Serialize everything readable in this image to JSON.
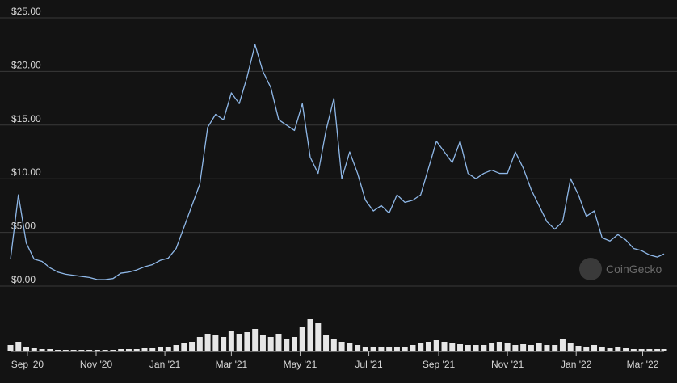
{
  "chart_data": {
    "type": "line",
    "watermark": "CoinGecko",
    "xlim": [
      "2020-08-17",
      "2022-03-20"
    ],
    "xticks": [
      {
        "value": "2020-09-01",
        "label": "Sep '20"
      },
      {
        "value": "2020-11-01",
        "label": "Nov '20"
      },
      {
        "value": "2021-01-01",
        "label": "Jan '21"
      },
      {
        "value": "2021-03-01",
        "label": "Mar '21"
      },
      {
        "value": "2021-05-01",
        "label": "May '21"
      },
      {
        "value": "2021-07-01",
        "label": "Jul '21"
      },
      {
        "value": "2021-09-01",
        "label": "Sep '21"
      },
      {
        "value": "2021-11-01",
        "label": "Nov '21"
      },
      {
        "value": "2022-01-01",
        "label": "Jan '22"
      },
      {
        "value": "2022-03-01",
        "label": "Mar '22"
      }
    ],
    "ylim": [
      0,
      25
    ],
    "yticks": [
      {
        "value": 0,
        "label": "$0.00"
      },
      {
        "value": 5,
        "label": "$5.00"
      },
      {
        "value": 10,
        "label": "$10.00"
      },
      {
        "value": 15,
        "label": "$15.00"
      },
      {
        "value": 20,
        "label": "$20.00"
      },
      {
        "value": 25,
        "label": "$25.00"
      }
    ],
    "y2lim": [
      0,
      50
    ],
    "grid": true,
    "x": [
      "2020-08-17",
      "2020-08-24",
      "2020-08-31",
      "2020-09-07",
      "2020-09-14",
      "2020-09-21",
      "2020-09-28",
      "2020-10-05",
      "2020-10-12",
      "2020-10-19",
      "2020-10-26",
      "2020-11-02",
      "2020-11-09",
      "2020-11-16",
      "2020-11-23",
      "2020-11-30",
      "2020-12-07",
      "2020-12-14",
      "2020-12-21",
      "2020-12-28",
      "2021-01-04",
      "2021-01-11",
      "2021-01-18",
      "2021-01-25",
      "2021-02-01",
      "2021-02-08",
      "2021-02-15",
      "2021-02-22",
      "2021-03-01",
      "2021-03-08",
      "2021-03-15",
      "2021-03-22",
      "2021-03-29",
      "2021-04-05",
      "2021-04-12",
      "2021-04-19",
      "2021-04-26",
      "2021-05-03",
      "2021-05-10",
      "2021-05-17",
      "2021-05-24",
      "2021-05-31",
      "2021-06-07",
      "2021-06-14",
      "2021-06-21",
      "2021-06-28",
      "2021-07-05",
      "2021-07-12",
      "2021-07-19",
      "2021-07-26",
      "2021-08-02",
      "2021-08-09",
      "2021-08-16",
      "2021-08-23",
      "2021-08-30",
      "2021-09-06",
      "2021-09-13",
      "2021-09-20",
      "2021-09-27",
      "2021-10-04",
      "2021-10-11",
      "2021-10-18",
      "2021-10-25",
      "2021-11-01",
      "2021-11-08",
      "2021-11-15",
      "2021-11-22",
      "2021-11-29",
      "2021-12-06",
      "2021-12-13",
      "2021-12-20",
      "2021-12-27",
      "2022-01-03",
      "2022-01-10",
      "2022-01-17",
      "2022-01-24",
      "2022-01-31",
      "2022-02-07",
      "2022-02-14",
      "2022-02-21",
      "2022-02-28",
      "2022-03-07",
      "2022-03-14",
      "2022-03-20"
    ],
    "series": [
      {
        "name": "Price",
        "color": "#8fb8e8",
        "axis": "y",
        "values": [
          2.5,
          8.5,
          4.0,
          2.5,
          2.3,
          1.7,
          1.3,
          1.1,
          1.0,
          0.9,
          0.8,
          0.6,
          0.6,
          0.7,
          1.2,
          1.3,
          1.5,
          1.8,
          2.0,
          2.4,
          2.6,
          3.5,
          5.5,
          7.5,
          9.5,
          14.8,
          16.0,
          15.5,
          18.0,
          17.0,
          19.5,
          22.5,
          20.0,
          18.5,
          15.5,
          15.0,
          14.5,
          17.0,
          12.0,
          10.5,
          14.5,
          17.5,
          10.0,
          12.5,
          10.5,
          8.0,
          7.0,
          7.5,
          6.8,
          8.5,
          7.8,
          8.0,
          8.5,
          11.0,
          13.5,
          12.5,
          11.5,
          13.5,
          10.5,
          10.0,
          10.5,
          10.8,
          10.5,
          10.5,
          12.5,
          11.0,
          9.0,
          7.5,
          6.0,
          5.3,
          6.0,
          10.0,
          8.5,
          6.5,
          7.0,
          4.5,
          4.2,
          4.8,
          4.3,
          3.5,
          3.3,
          2.9,
          2.7,
          3.0
        ]
      },
      {
        "name": "Volume",
        "color": "#e6e6e6",
        "axis": "y2",
        "values": [
          8,
          12,
          6,
          4,
          3,
          3,
          2,
          2,
          2,
          2,
          2,
          2,
          2,
          2,
          3,
          3,
          3,
          4,
          4,
          5,
          6,
          8,
          10,
          12,
          18,
          22,
          20,
          18,
          25,
          22,
          24,
          28,
          20,
          18,
          22,
          15,
          18,
          30,
          40,
          35,
          20,
          15,
          12,
          10,
          8,
          6,
          6,
          5,
          6,
          5,
          6,
          8,
          10,
          12,
          14,
          12,
          10,
          9,
          8,
          8,
          8,
          10,
          12,
          10,
          8,
          9,
          8,
          10,
          8,
          8,
          16,
          10,
          7,
          6,
          8,
          5,
          4,
          5,
          4,
          3,
          3,
          3,
          3,
          3
        ]
      }
    ]
  }
}
